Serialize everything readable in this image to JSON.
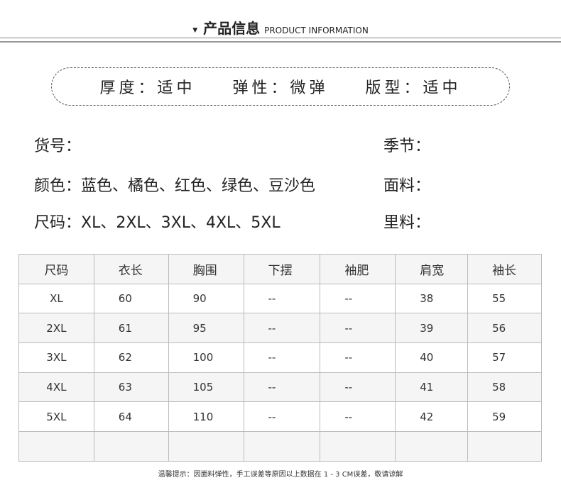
{
  "header": {
    "marker": "▼",
    "title_cn": "产品信息",
    "title_en": "PRODUCT INFORMATION"
  },
  "attributes": [
    {
      "label": "厚度：适中"
    },
    {
      "label": "弹性：微弹"
    },
    {
      "label": "版型：适中"
    }
  ],
  "info": {
    "item_no": "货号：",
    "season": "季节：",
    "colors": "颜色：蓝色、橘色、红色、绿色、豆沙色",
    "fabric": "面料：",
    "sizes": "尺码：XL、2XL、3XL、4XL、5XL",
    "lining": "里料："
  },
  "table": {
    "headers": [
      "尺码",
      "衣长",
      "胸围",
      "下摆",
      "袖肥",
      "肩宽",
      "袖长"
    ],
    "rows": [
      [
        "XL",
        "60",
        "90",
        "--",
        "--",
        "38",
        "55"
      ],
      [
        "2XL",
        "61",
        "95",
        "--",
        "--",
        "39",
        "56"
      ],
      [
        "3XL",
        "62",
        "100",
        "--",
        "--",
        "40",
        "57"
      ],
      [
        "4XL",
        "63",
        "105",
        "--",
        "--",
        "41",
        "58"
      ],
      [
        "5XL",
        "64",
        "110",
        "--",
        "--",
        "42",
        "59"
      ],
      [
        "",
        "",
        "",
        "",
        "",
        "",
        ""
      ]
    ]
  },
  "note": "温馨提示：因面料弹性，手工误差等原因以上数据在 1 - 3 CM误差，敬请谅解"
}
